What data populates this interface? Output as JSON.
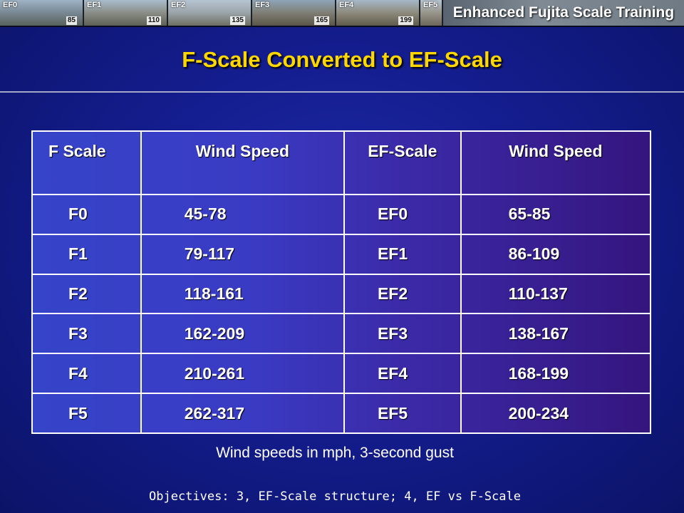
{
  "banner": {
    "thumbs": [
      {
        "label": "EF0",
        "value": "85"
      },
      {
        "label": "EF1",
        "value": "110"
      },
      {
        "label": "EF2",
        "value": "135"
      },
      {
        "label": "EF3",
        "value": "165"
      },
      {
        "label": "EF4",
        "value": "199"
      },
      {
        "label": "EF5",
        "value": ""
      }
    ],
    "title": "Enhanced Fujita Scale Training"
  },
  "title": "F-Scale Converted to EF-Scale",
  "table": {
    "headers": [
      "F Scale",
      "Wind Speed",
      "EF-Scale",
      "Wind Speed"
    ],
    "rows": [
      [
        "F0",
        "45-78",
        "EF0",
        "65-85"
      ],
      [
        "F1",
        "79-117",
        "EF1",
        "86-109"
      ],
      [
        "F2",
        "118-161",
        "EF2",
        "110-137"
      ],
      [
        "F3",
        "162-209",
        "EF3",
        "138-167"
      ],
      [
        "F4",
        "210-261",
        "EF4",
        "168-199"
      ],
      [
        "F5",
        "262-317",
        "EF5",
        "200-234"
      ]
    ]
  },
  "note": "Wind speeds in mph, 3-second gust",
  "objectives": "Objectives: 3, EF-Scale structure; 4, EF vs F-Scale"
}
